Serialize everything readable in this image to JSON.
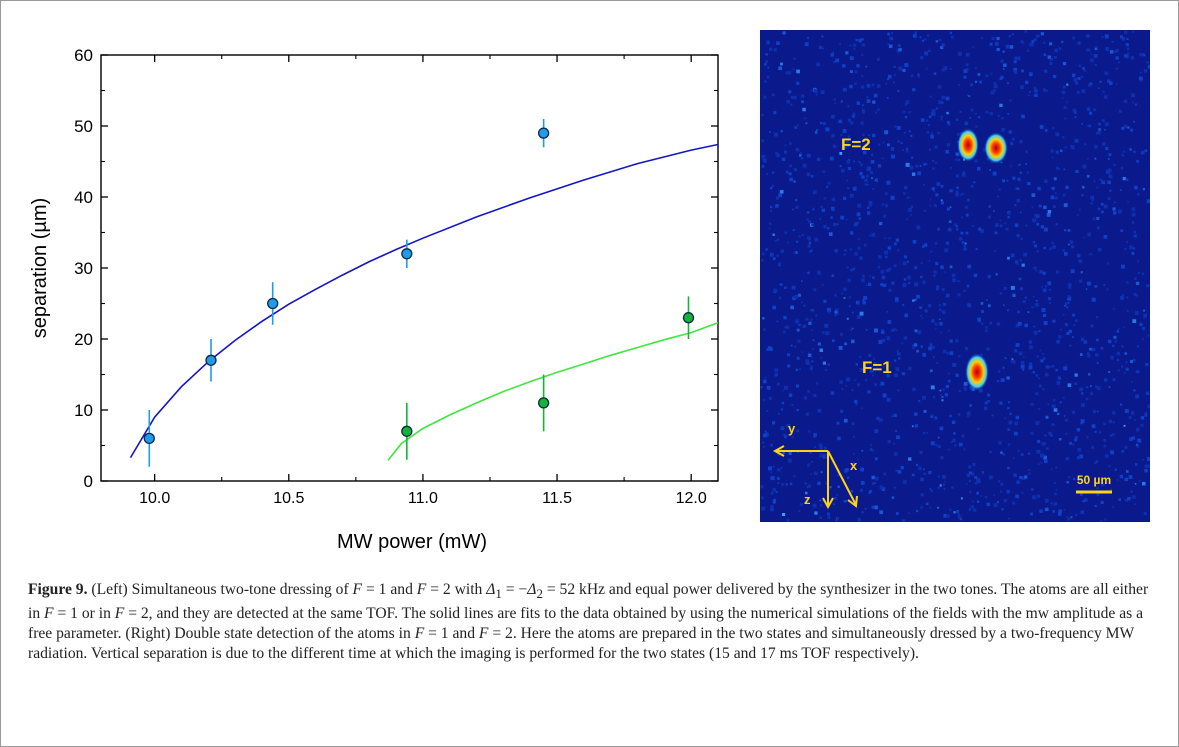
{
  "figure": {
    "label": "Figure 9.",
    "caption_html": "(Left) Simultaneous two-tone dressing of <i>F</i> = 1 and <i>F</i> = 2 with <i>Δ</i><sub>1</sub> = −<i>Δ</i><sub>2</sub> = 52 kHz and equal power delivered by the synthesizer in the two tones. The atoms are all either in <i>F</i> = 1 or in <i>F</i> = 2, and they are detected at the same TOF. The solid lines are fits to the data obtained by using the numerical simulations of the fields with the mw amplitude as a free parameter. (Right) Double state detection of the atoms in <i>F</i> = 1 and <i>F</i> = 2. Here the atoms are prepared in the two states and simultaneously dressed by a two-frequency MW radiation. Vertical separation is due to the different time at which the imaging is performed for the two states (15 and 17 ms TOF respectively)."
  },
  "chart_data": {
    "type": "scatter",
    "title": "",
    "xlabel": "MW power (mW)",
    "ylabel": "separation (µm)",
    "xlim": [
      9.8,
      12.1
    ],
    "ylim": [
      0,
      60
    ],
    "xticks": [
      10.0,
      10.5,
      11.0,
      11.5,
      12.0
    ],
    "xtick_labels": [
      "10.0",
      "10.5",
      "11.0",
      "11.5",
      "12.0"
    ],
    "yticks": [
      0,
      10,
      20,
      30,
      40,
      50,
      60
    ],
    "ytick_labels": [
      "0",
      "10",
      "20",
      "30",
      "40",
      "50",
      "60"
    ],
    "series": [
      {
        "color": "#1f9be8",
        "points": [
          {
            "x": 9.98,
            "y": 6,
            "err": 4
          },
          {
            "x": 10.21,
            "y": 17,
            "err": 3
          },
          {
            "x": 10.44,
            "y": 25,
            "err": 3
          },
          {
            "x": 10.94,
            "y": 32,
            "err": 2
          },
          {
            "x": 11.45,
            "y": 49,
            "err": 2
          }
        ],
        "fit": {
          "color": "#1414c8",
          "points": [
            [
              9.91,
              3.3
            ],
            [
              10.0,
              9.0
            ],
            [
              10.1,
              13.3
            ],
            [
              10.2,
              16.8
            ],
            [
              10.3,
              19.8
            ],
            [
              10.4,
              22.5
            ],
            [
              10.5,
              24.9
            ],
            [
              10.6,
              27.0
            ],
            [
              10.7,
              29.0
            ],
            [
              10.8,
              30.9
            ],
            [
              10.9,
              32.6
            ],
            [
              11.0,
              34.2
            ],
            [
              11.2,
              37.2
            ],
            [
              11.4,
              39.9
            ],
            [
              11.6,
              42.4
            ],
            [
              11.8,
              44.7
            ],
            [
              12.0,
              46.6
            ],
            [
              12.1,
              47.4
            ]
          ]
        }
      },
      {
        "color": "#17b23a",
        "points": [
          {
            "x": 10.94,
            "y": 7,
            "err": 4
          },
          {
            "x": 11.45,
            "y": 11,
            "err": 4
          },
          {
            "x": 11.99,
            "y": 23,
            "err": 3
          }
        ],
        "fit": {
          "color": "#3ee63e",
          "points": [
            [
              10.87,
              2.9
            ],
            [
              10.92,
              5.3
            ],
            [
              11.0,
              7.4
            ],
            [
              11.1,
              9.3
            ],
            [
              11.2,
              11.0
            ],
            [
              11.3,
              12.6
            ],
            [
              11.4,
              14.0
            ],
            [
              11.5,
              15.3
            ],
            [
              11.6,
              16.5
            ],
            [
              11.7,
              17.7
            ],
            [
              11.8,
              18.8
            ],
            [
              11.9,
              19.9
            ],
            [
              12.0,
              20.9
            ],
            [
              12.1,
              22.3
            ]
          ]
        }
      }
    ]
  },
  "image_panel": {
    "label_f2": "F=2",
    "label_f1": "F=1",
    "axis_y": "y",
    "axis_x": "x",
    "axis_z": "z",
    "scale_bar": "50 µm"
  }
}
